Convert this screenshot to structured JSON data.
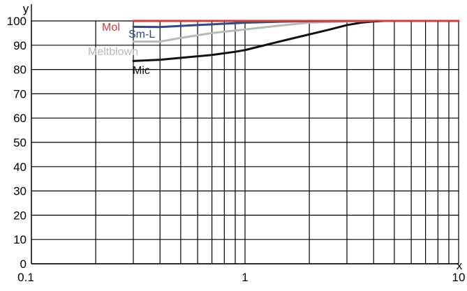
{
  "chart_data": {
    "type": "line",
    "x_scale": "log",
    "xlim": [
      0.1,
      10
    ],
    "ylim": [
      0,
      100
    ],
    "xlabel": "x",
    "ylabel": "y",
    "x_ticks": [
      0.1,
      1,
      10
    ],
    "x_tick_labels": [
      "0.1",
      "1",
      "10"
    ],
    "y_ticks": [
      0,
      10,
      20,
      30,
      40,
      50,
      60,
      70,
      80,
      90,
      100
    ],
    "y_tick_labels": [
      "0",
      "10",
      "20",
      "30",
      "40",
      "50",
      "60",
      "70",
      "80",
      "90",
      "100"
    ],
    "grid": true,
    "legend": "none",
    "series": [
      {
        "name": "Mol",
        "color": "#d23a3a",
        "x": [
          0.3,
          0.5,
          1,
          2,
          5,
          10
        ],
        "y": [
          100,
          100,
          100,
          100,
          100,
          100
        ]
      },
      {
        "name": "Sm-L",
        "color": "#2b4a8a",
        "x": [
          0.3,
          0.4,
          0.6,
          1.0,
          1.5,
          2.0,
          3.0
        ],
        "y": [
          97.6,
          97.5,
          98.3,
          99.3,
          99.7,
          99.9,
          100
        ]
      },
      {
        "name": "Meltblown",
        "color": "#b8b8b8",
        "x": [
          0.3,
          0.4,
          0.5,
          0.7,
          1.0,
          1.5,
          2.0,
          3.0,
          4.0
        ],
        "y": [
          91.5,
          91.5,
          93.0,
          95.0,
          96.5,
          98.2,
          99.3,
          99.8,
          100
        ]
      },
      {
        "name": "Mic",
        "color": "#111111",
        "x": [
          0.3,
          0.4,
          0.5,
          0.7,
          0.9,
          1.0,
          1.3,
          1.8,
          2.5,
          3.0,
          3.5,
          4.0,
          4.5
        ],
        "y": [
          83.5,
          84.0,
          84.8,
          86.0,
          87.3,
          88.0,
          90.5,
          93.5,
          96.5,
          98.3,
          99.3,
          99.8,
          100
        ]
      }
    ]
  }
}
